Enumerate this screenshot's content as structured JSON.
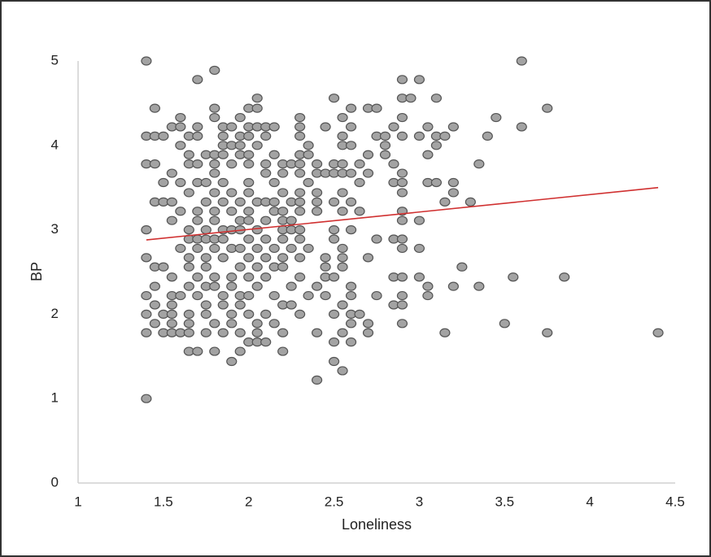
{
  "chart_data": {
    "type": "scatter",
    "x_label": "Loneliness",
    "y_label": "BP",
    "xlim": [
      1,
      4.5
    ],
    "xticks": [
      1,
      1.5,
      2,
      2.5,
      3,
      3.5,
      4,
      4.5
    ],
    "ylim": [
      0,
      5
    ],
    "yticks": [
      0,
      1,
      2,
      3,
      4,
      5
    ],
    "grid": false,
    "color": "#a3a3a3",
    "trendline": {
      "x": [
        1.4,
        4.4
      ],
      "y": [
        2.88,
        3.5
      ],
      "color": "#d03030"
    },
    "x": [
      1.4,
      3.6,
      1.8,
      1.7,
      2.9,
      3.0,
      2.05,
      2.5,
      2.9,
      2.95,
      3.1,
      1.45,
      1.8,
      2.0,
      2.05,
      2.6,
      2.7,
      2.75,
      3.75,
      1.6,
      1.8,
      1.95,
      2.3,
      2.55,
      2.9,
      3.45,
      1.55,
      1.6,
      1.7,
      1.85,
      1.9,
      2.0,
      2.05,
      2.1,
      2.15,
      2.3,
      2.45,
      2.6,
      2.85,
      3.05,
      3.2,
      3.6,
      1.4,
      1.45,
      1.5,
      1.65,
      1.7,
      1.85,
      1.95,
      2.0,
      2.1,
      2.3,
      2.55,
      2.75,
      2.8,
      2.9,
      3.0,
      3.1,
      3.15,
      3.4,
      1.6,
      1.85,
      1.9,
      1.95,
      2.05,
      2.35,
      2.55,
      2.6,
      2.8,
      3.1,
      1.65,
      1.75,
      1.8,
      1.85,
      1.95,
      2.0,
      2.15,
      2.3,
      2.35,
      2.7,
      2.8,
      3.05,
      1.4,
      1.45,
      1.65,
      1.7,
      1.8,
      1.9,
      2.0,
      2.1,
      2.2,
      2.25,
      2.3,
      2.4,
      2.5,
      2.55,
      2.65,
      2.85,
      3.35,
      1.55,
      1.8,
      2.1,
      2.2,
      2.3,
      2.4,
      2.45,
      2.5,
      2.55,
      2.6,
      2.7,
      2.9,
      1.5,
      1.6,
      1.7,
      1.75,
      1.85,
      2.0,
      2.15,
      2.35,
      2.65,
      2.85,
      2.9,
      3.05,
      3.1,
      3.2,
      1.65,
      1.8,
      1.9,
      2.0,
      2.2,
      2.3,
      2.4,
      2.55,
      2.9,
      3.2,
      1.45,
      1.5,
      1.55,
      1.75,
      1.85,
      1.95,
      2.05,
      2.1,
      2.15,
      2.25,
      2.3,
      2.4,
      2.5,
      2.6,
      3.15,
      3.3,
      1.6,
      1.7,
      1.8,
      1.9,
      2.0,
      2.15,
      2.2,
      2.3,
      2.4,
      2.55,
      2.65,
      2.9,
      1.55,
      1.7,
      1.8,
      1.95,
      2.0,
      2.1,
      2.2,
      2.25,
      2.9,
      3.0,
      1.4,
      1.65,
      1.75,
      1.85,
      1.9,
      1.95,
      2.05,
      2.2,
      2.25,
      2.3,
      2.5,
      2.6,
      1.65,
      1.7,
      1.75,
      1.8,
      1.85,
      2.0,
      2.1,
      2.2,
      2.3,
      2.5,
      2.75,
      2.85,
      2.9,
      1.6,
      1.7,
      1.8,
      1.9,
      1.95,
      2.05,
      2.15,
      2.25,
      2.35,
      2.55,
      2.9,
      3.0,
      1.4,
      1.65,
      1.75,
      1.85,
      2.0,
      2.1,
      2.2,
      2.3,
      2.45,
      2.55,
      2.7,
      1.45,
      1.5,
      1.65,
      1.75,
      1.95,
      2.05,
      2.15,
      2.2,
      2.45,
      2.55,
      3.25,
      1.55,
      1.7,
      1.8,
      1.9,
      2.0,
      2.1,
      2.3,
      2.45,
      2.5,
      2.85,
      2.9,
      3.0,
      3.55,
      3.85,
      1.45,
      1.65,
      1.75,
      1.8,
      1.9,
      2.05,
      2.25,
      2.4,
      2.6,
      3.05,
      3.2,
      3.35,
      1.4,
      1.55,
      1.6,
      1.7,
      1.85,
      1.95,
      2.0,
      2.15,
      2.35,
      2.45,
      2.6,
      2.75,
      2.9,
      3.05,
      1.45,
      1.55,
      1.75,
      1.85,
      1.95,
      2.2,
      2.25,
      2.55,
      2.85,
      2.9,
      1.4,
      1.5,
      1.55,
      1.65,
      1.75,
      1.9,
      2.0,
      2.1,
      2.3,
      2.5,
      2.6,
      2.65,
      1.45,
      1.55,
      1.65,
      1.8,
      1.9,
      2.05,
      2.15,
      2.6,
      2.7,
      2.9,
      3.5,
      1.4,
      1.5,
      1.55,
      1.6,
      1.65,
      1.75,
      1.85,
      1.95,
      2.05,
      2.2,
      2.4,
      2.55,
      2.7,
      3.15,
      3.75,
      4.4,
      2.0,
      2.05,
      2.1,
      2.5,
      2.6,
      1.65,
      1.7,
      1.8,
      1.95,
      2.2,
      1.9,
      2.5,
      2.55,
      2.4,
      1.4
    ],
    "y": [
      5,
      5,
      4.89,
      4.78,
      4.78,
      4.78,
      4.56,
      4.56,
      4.56,
      4.56,
      4.56,
      4.44,
      4.44,
      4.44,
      4.44,
      4.44,
      4.44,
      4.44,
      4.44,
      4.33,
      4.33,
      4.33,
      4.33,
      4.33,
      4.33,
      4.33,
      4.22,
      4.22,
      4.22,
      4.22,
      4.22,
      4.22,
      4.22,
      4.22,
      4.22,
      4.22,
      4.22,
      4.22,
      4.22,
      4.22,
      4.22,
      4.22,
      4.11,
      4.11,
      4.11,
      4.11,
      4.11,
      4.11,
      4.11,
      4.11,
      4.11,
      4.11,
      4.11,
      4.11,
      4.11,
      4.11,
      4.11,
      4.11,
      4.11,
      4.11,
      4,
      4,
      4,
      4,
      4,
      4,
      4,
      4,
      4,
      4,
      3.89,
      3.89,
      3.89,
      3.89,
      3.89,
      3.89,
      3.89,
      3.89,
      3.89,
      3.89,
      3.89,
      3.89,
      3.78,
      3.78,
      3.78,
      3.78,
      3.78,
      3.78,
      3.78,
      3.78,
      3.78,
      3.78,
      3.78,
      3.78,
      3.78,
      3.78,
      3.78,
      3.78,
      3.78,
      3.67,
      3.67,
      3.67,
      3.67,
      3.67,
      3.67,
      3.67,
      3.67,
      3.67,
      3.67,
      3.67,
      3.67,
      3.56,
      3.56,
      3.56,
      3.56,
      3.56,
      3.56,
      3.56,
      3.56,
      3.56,
      3.56,
      3.56,
      3.56,
      3.56,
      3.56,
      3.44,
      3.44,
      3.44,
      3.44,
      3.44,
      3.44,
      3.44,
      3.44,
      3.44,
      3.44,
      3.33,
      3.33,
      3.33,
      3.33,
      3.33,
      3.33,
      3.33,
      3.33,
      3.33,
      3.33,
      3.33,
      3.33,
      3.33,
      3.33,
      3.33,
      3.33,
      3.22,
      3.22,
      3.22,
      3.22,
      3.22,
      3.22,
      3.22,
      3.22,
      3.22,
      3.22,
      3.22,
      3.22,
      3.11,
      3.11,
      3.11,
      3.11,
      3.11,
      3.11,
      3.11,
      3.11,
      3.11,
      3.11,
      3,
      3,
      3,
      3,
      3,
      3,
      3,
      3,
      3,
      3,
      3,
      3,
      2.89,
      2.89,
      2.89,
      2.89,
      2.89,
      2.89,
      2.89,
      2.89,
      2.89,
      2.89,
      2.89,
      2.89,
      2.89,
      2.78,
      2.78,
      2.78,
      2.78,
      2.78,
      2.78,
      2.78,
      2.78,
      2.78,
      2.78,
      2.78,
      2.78,
      2.67,
      2.67,
      2.67,
      2.67,
      2.67,
      2.67,
      2.67,
      2.67,
      2.67,
      2.67,
      2.67,
      2.56,
      2.56,
      2.56,
      2.56,
      2.56,
      2.56,
      2.56,
      2.56,
      2.56,
      2.56,
      2.56,
      2.44,
      2.44,
      2.44,
      2.44,
      2.44,
      2.44,
      2.44,
      2.44,
      2.44,
      2.44,
      2.44,
      2.44,
      2.44,
      2.44,
      2.33,
      2.33,
      2.33,
      2.33,
      2.33,
      2.33,
      2.33,
      2.33,
      2.33,
      2.33,
      2.33,
      2.33,
      2.22,
      2.22,
      2.22,
      2.22,
      2.22,
      2.22,
      2.22,
      2.22,
      2.22,
      2.22,
      2.22,
      2.22,
      2.22,
      2.22,
      2.11,
      2.11,
      2.11,
      2.11,
      2.11,
      2.11,
      2.11,
      2.11,
      2.11,
      2.11,
      2,
      2,
      2,
      2,
      2,
      2,
      2,
      2,
      2,
      2,
      2,
      2,
      1.89,
      1.89,
      1.89,
      1.89,
      1.89,
      1.89,
      1.89,
      1.89,
      1.89,
      1.89,
      1.89,
      1.78,
      1.78,
      1.78,
      1.78,
      1.78,
      1.78,
      1.78,
      1.78,
      1.78,
      1.78,
      1.78,
      1.78,
      1.78,
      1.78,
      1.78,
      1.78,
      1.67,
      1.67,
      1.67,
      1.67,
      1.67,
      1.56,
      1.56,
      1.56,
      1.56,
      1.56,
      1.44,
      1.44,
      1.33,
      1.22,
      1
    ]
  }
}
